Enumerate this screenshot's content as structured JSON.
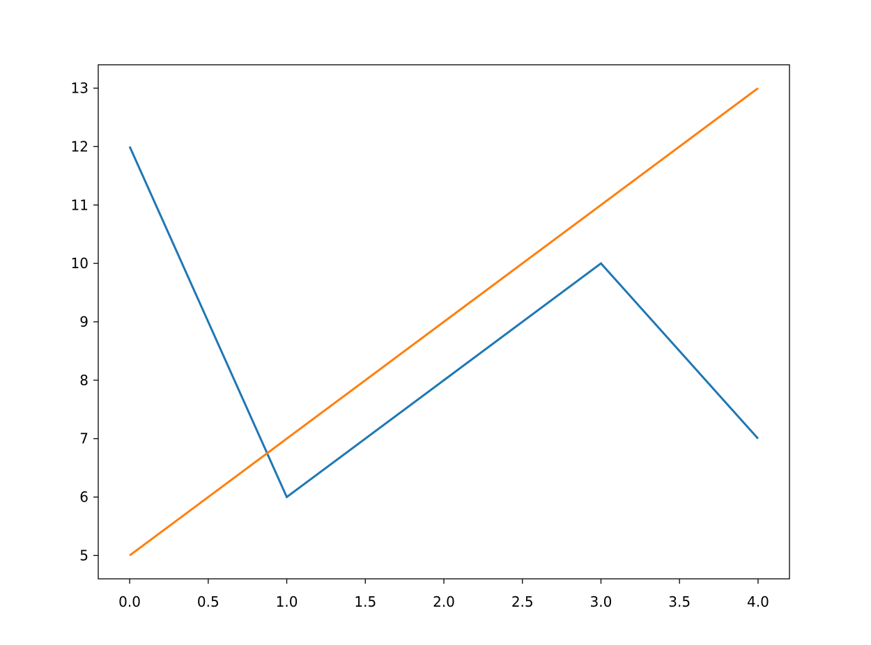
{
  "chart_data": {
    "type": "line",
    "title": "",
    "xlabel": "",
    "ylabel": "",
    "xlim": [
      -0.2,
      4.2
    ],
    "ylim": [
      4.6,
      13.4
    ],
    "grid": false,
    "xticks": [
      0.0,
      0.5,
      1.0,
      1.5,
      2.0,
      2.5,
      3.0,
      3.5,
      4.0
    ],
    "xtick_labels": [
      "0.0",
      "0.5",
      "1.0",
      "1.5",
      "2.0",
      "2.5",
      "3.0",
      "3.5",
      "4.0"
    ],
    "yticks": [
      5,
      6,
      7,
      8,
      9,
      10,
      11,
      12,
      13
    ],
    "ytick_labels": [
      "5",
      "6",
      "7",
      "8",
      "9",
      "10",
      "11",
      "12",
      "13"
    ],
    "x": [
      0,
      1,
      2,
      3,
      4
    ],
    "series": [
      {
        "values": [
          12,
          6,
          8,
          10,
          7
        ],
        "color": "#1f77b4"
      },
      {
        "values": [
          5,
          7,
          9,
          11,
          13
        ],
        "color": "#ff7f0e"
      }
    ]
  }
}
